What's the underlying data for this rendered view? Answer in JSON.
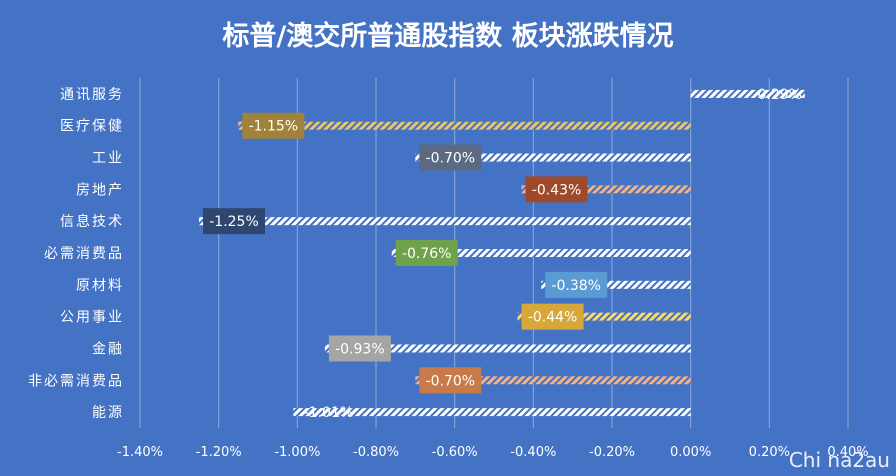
{
  "chart_data": {
    "type": "bar",
    "orientation": "horizontal",
    "title": "标普/澳交所普通股指数 板块涨跌情况",
    "categories": [
      "通讯服务",
      "医疗保健",
      "工业",
      "房地产",
      "信息技术",
      "必需消费品",
      "原材料",
      "公用事业",
      "金融",
      "非必需消费品",
      "能源"
    ],
    "values": [
      0.29,
      -1.15,
      -0.7,
      -0.43,
      -1.25,
      -0.76,
      -0.38,
      -0.44,
      -0.93,
      -0.7,
      -1.01
    ],
    "data_labels": [
      "0.29%",
      "-1.15%",
      "-0.70%",
      "-0.43%",
      "-1.25%",
      "-0.76%",
      "-0.38%",
      "-0.44%",
      "-0.93%",
      "-0.70%",
      "-1.01%"
    ],
    "label_colors": [
      "#ffffff",
      "#a0823a",
      "#5b6a80",
      "#9e4a2a",
      "#2f4670",
      "#6fa24a",
      "#5b9bd5",
      "#d6a83a",
      "#a5a5a5",
      "#c87a4a",
      "#ffffff"
    ],
    "bar_pattern_colors": [
      "#ffffff",
      "#e9c46a",
      "#ffffff",
      "#f4b183",
      "#ffffff",
      "#ffffff",
      "#ffffff",
      "#ffd966",
      "#ffffff",
      "#f4b183",
      "#ffffff"
    ],
    "xlim": [
      -1.4,
      0.4
    ],
    "x_ticks": [
      "-1.40%",
      "-1.20%",
      "-1.00%",
      "-0.80%",
      "-0.60%",
      "-0.40%",
      "-0.20%",
      "0.00%",
      "0.20%",
      "0.40%"
    ],
    "x_tick_values": [
      -1.4,
      -1.2,
      -1.0,
      -0.8,
      -0.6,
      -0.4,
      -0.2,
      0.0,
      0.2,
      0.4
    ],
    "grid": true,
    "legend": "none",
    "background": "#4472c4",
    "watermark": "Chi na2au"
  }
}
